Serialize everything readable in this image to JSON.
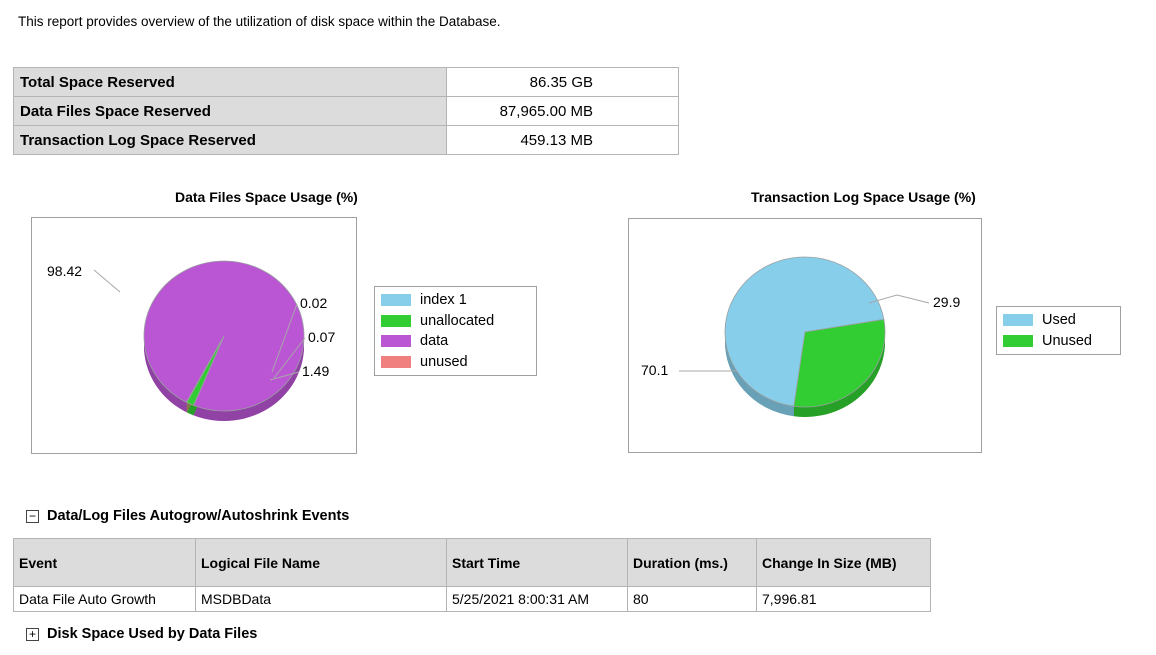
{
  "intro": "This report provides overview of the utilization of disk space within the Database.",
  "summary": {
    "rows": [
      {
        "label": "Total Space Reserved",
        "value": "86.35 GB"
      },
      {
        "label": "Data Files Space Reserved",
        "value": "87,965.00 MB"
      },
      {
        "label": "Transaction Log Space Reserved",
        "value": "459.13 MB"
      }
    ]
  },
  "chart_data": [
    {
      "type": "pie",
      "title": "Data Files Space Usage (%)",
      "categories": [
        "index 1",
        "unallocated",
        "data",
        "unused"
      ],
      "values": [
        0.02,
        1.49,
        98.42,
        0.07
      ],
      "slice_labels": [
        "0.02",
        "1.49",
        "98.42",
        "0.07"
      ],
      "colors": [
        "#87ceeb",
        "#32cd32",
        "#ba55d3",
        "#f08080"
      ],
      "legend_placement": "right"
    },
    {
      "type": "pie",
      "title": "Transaction Log Space Usage (%)",
      "categories": [
        "Used",
        "Unused"
      ],
      "values": [
        70.1,
        29.9
      ],
      "slice_labels": [
        "70.1",
        "29.9"
      ],
      "colors": [
        "#87ceeb",
        "#32cd32"
      ],
      "legend_placement": "right"
    }
  ],
  "sections": {
    "autogrow": {
      "title": "Data/Log Files Autogrow/Autoshrink Events",
      "toggle": "−"
    },
    "disk_space": {
      "title": "Disk Space Used by Data Files",
      "toggle": "+"
    }
  },
  "events_table": {
    "headers": [
      "Event",
      "Logical File Name",
      "Start Time",
      "Duration (ms.)",
      "Change In Size (MB)"
    ],
    "rows": [
      [
        "Data File Auto Growth",
        "MSDBData",
        "5/25/2021 8:00:31 AM",
        "80",
        "7,996.81"
      ]
    ]
  }
}
